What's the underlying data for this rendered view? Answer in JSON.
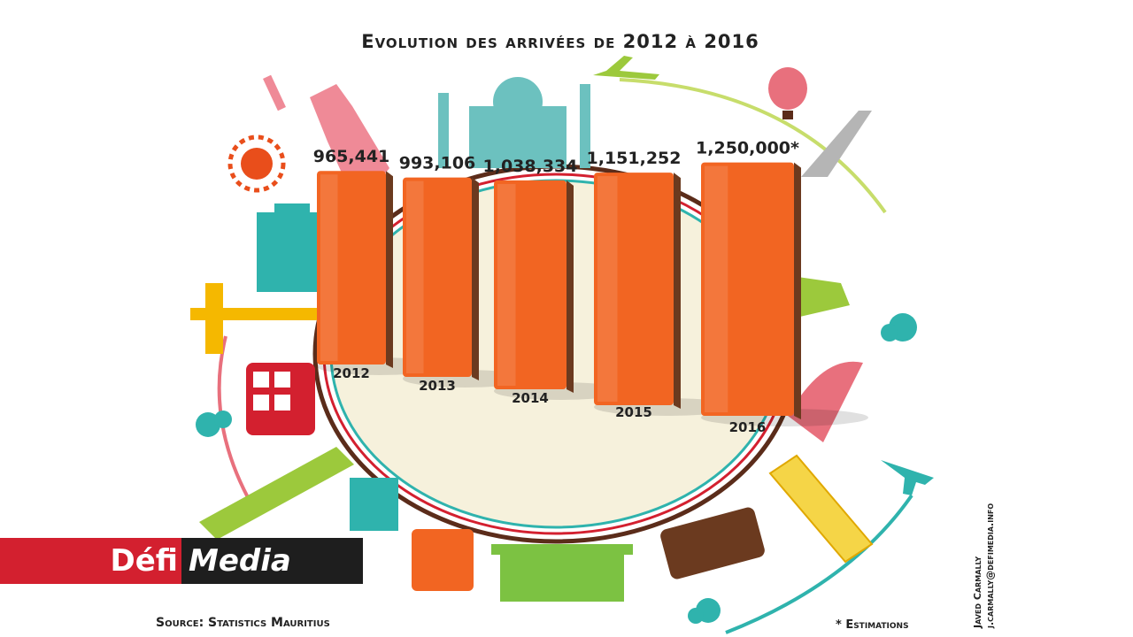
{
  "chart_data": {
    "type": "bar",
    "title": "Evolution des arrivées de 2012 à 2016",
    "categories": [
      "2012",
      "2013",
      "2014",
      "2015",
      "2016"
    ],
    "values": [
      965441,
      993106,
      1038334,
      1151252,
      1250000
    ],
    "value_labels": [
      "965,441",
      "993,106",
      "1,038,334",
      "1,151,252",
      "1,250,000*"
    ],
    "estimated": [
      false,
      false,
      false,
      false,
      true
    ],
    "xlabel": "",
    "ylabel": "",
    "bar_color": "#f26522",
    "bar_side_color": "#6b3a1f"
  },
  "brand": {
    "part1": "Défi",
    "part2": "Media",
    "color_red": "#d3202f",
    "color_dark": "#1e1e1e"
  },
  "source": "Source: Statistics Mauritius",
  "footnote": "* Estimations",
  "credit": {
    "name": "Javed Carmally",
    "email": "j.carmally@defimedia.info"
  }
}
